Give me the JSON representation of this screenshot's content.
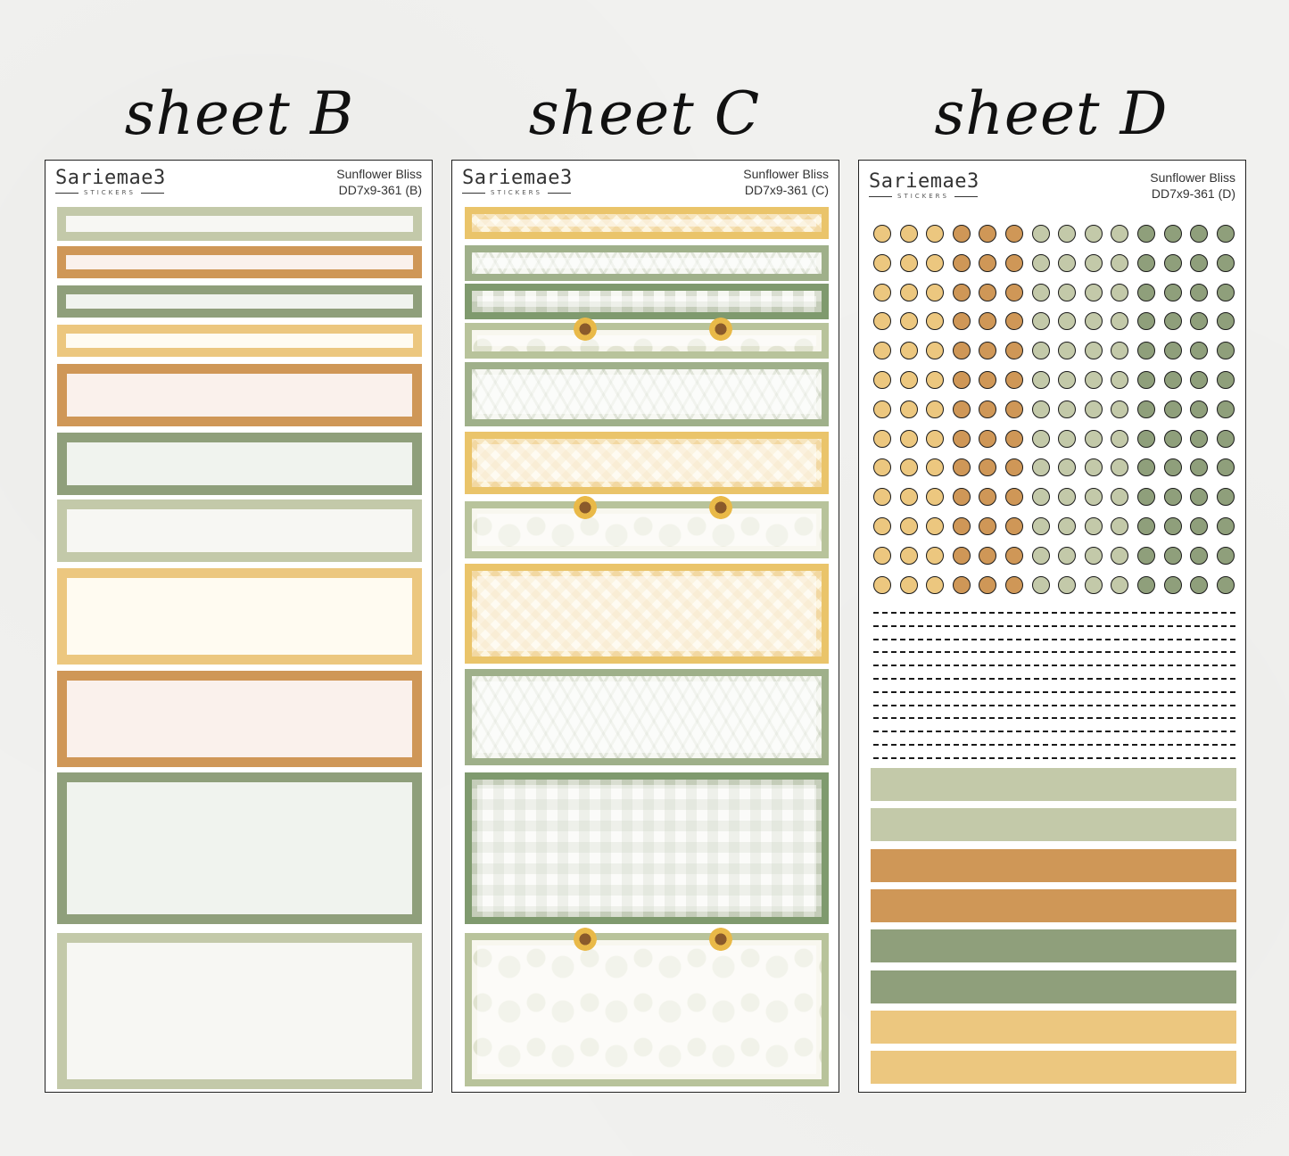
{
  "sheets": [
    {
      "title": "sheet B",
      "brand": "Sariemae3",
      "brand_sub": "STICKERS",
      "kit_name": "Sunflower Bliss",
      "code": "DD7x9-361 (B)"
    },
    {
      "title": "sheet C",
      "brand": "Sariemae3",
      "brand_sub": "STICKERS",
      "kit_name": "Sunflower Bliss",
      "code": "DD7x9-361 (C)"
    },
    {
      "title": "sheet D",
      "brand": "Sariemae3",
      "brand_sub": "STICKERS",
      "kit_name": "Sunflower Bliss",
      "code": "DD7x9-361 (D)"
    }
  ],
  "colors": {
    "sage_light": "#c3c9a9",
    "sage_dark": "#8f9f7b",
    "mustard": "#cf9757",
    "yellow": "#ecc77f",
    "cream_fill": "#f7f7f3",
    "peach_fill": "#faf1ec",
    "green_fill": "#f0f3ee",
    "yellow_fill": "#fffbf1"
  },
  "dot_columns": [
    "yellow",
    "yellow",
    "yellow",
    "mustard",
    "mustard",
    "mustard",
    "sage_light",
    "sage_light",
    "sage_light",
    "sage_light",
    "sage_dark",
    "sage_dark",
    "sage_dark",
    "sage_dark"
  ],
  "dot_rows": 13,
  "dash_rows": 12,
  "stripe_colors": [
    "sage_light",
    "sage_light",
    "mustard",
    "mustard",
    "sage_dark",
    "sage_dark",
    "yellow",
    "yellow"
  ],
  "sheet_b_boxes": [
    {
      "border": "sage_light",
      "fill": "cream_fill"
    },
    {
      "border": "mustard",
      "fill": "peach_fill"
    },
    {
      "border": "sage_dark",
      "fill": "green_fill"
    },
    {
      "border": "yellow",
      "fill": "yellow_fill"
    },
    {
      "border": "mustard",
      "fill": "peach_fill"
    },
    {
      "border": "sage_dark",
      "fill": "green_fill"
    },
    {
      "border": "sage_light",
      "fill": "cream_fill"
    },
    {
      "border": "yellow",
      "fill": "yellow_fill"
    },
    {
      "border": "mustard",
      "fill": "peach_fill"
    },
    {
      "border": "sage_dark",
      "fill": "green_fill"
    },
    {
      "border": "sage_light",
      "fill": "cream_fill"
    }
  ],
  "sheet_c_patterns": [
    "yellow-gingham",
    "leaf-vine",
    "green-gingham",
    "sunflower-floral",
    "leaf-vine",
    "yellow-gingham",
    "sunflower-floral",
    "yellow-gingham",
    "leaf-vine",
    "green-gingham",
    "sunflower-floral"
  ]
}
